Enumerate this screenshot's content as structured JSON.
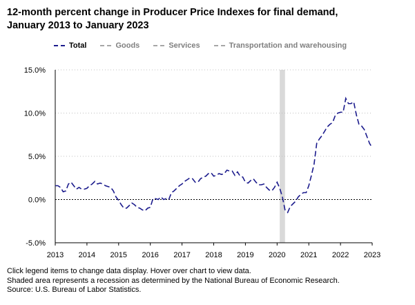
{
  "title_line1": "12-month percent change in Producer Price Indexes for final demand,",
  "title_line2": "January 2013 to January 2023",
  "legend": [
    {
      "label": "Total",
      "active": true
    },
    {
      "label": "Goods",
      "active": false
    },
    {
      "label": "Services",
      "active": false
    },
    {
      "label": "Transportation and warehousing",
      "active": false
    }
  ],
  "footer": {
    "line1": "Click legend items to change data display. Hover over chart to view data.",
    "line2": "Shaded area represents a recession as determined by the National Bureau of Economic Research.",
    "line3": "Source: U.S. Bureau of Labor Statistics."
  },
  "colors": {
    "total": "#1a1a8c",
    "inactive": "#a6a6a6",
    "recession": "#d9d9d9",
    "grid": "#bfbfbf"
  },
  "chart_data": {
    "type": "line",
    "title": "12-month percent change in Producer Price Indexes for final demand, January 2013 to January 2023",
    "xlabel": "",
    "ylabel": "",
    "ylim": [
      -5,
      15
    ],
    "yticks": [
      -5,
      0,
      5,
      10,
      15
    ],
    "ytick_labels": [
      "-5.0%",
      "0.0%",
      "5.0%",
      "10.0%",
      "15.0%"
    ],
    "xlim": [
      2013,
      2023
    ],
    "xticks": [
      2013,
      2014,
      2015,
      2016,
      2017,
      2018,
      2019,
      2020,
      2021,
      2022,
      2023
    ],
    "xtick_labels": [
      "2013",
      "2014",
      "2015",
      "2016",
      "2017",
      "2018",
      "2019",
      "2020",
      "2021",
      "2022",
      "2023"
    ],
    "recession": {
      "start": 2020.083,
      "end": 2020.25
    },
    "series": [
      {
        "name": "Total",
        "x_start": 2013.0,
        "x_step_months": 1,
        "values": [
          1.6,
          1.6,
          1.4,
          0.9,
          1.0,
          1.8,
          2.0,
          1.6,
          1.2,
          1.4,
          1.2,
          1.2,
          1.3,
          1.6,
          1.8,
          2.1,
          1.8,
          1.9,
          1.8,
          1.6,
          1.5,
          1.4,
          1.0,
          0.3,
          -0.1,
          -0.6,
          -1.0,
          -1.0,
          -0.7,
          -0.4,
          -0.6,
          -0.9,
          -1.0,
          -1.2,
          -1.3,
          -1.0,
          -0.9,
          0.1,
          0.1,
          0.0,
          0.3,
          0.0,
          0.1,
          0.0,
          0.8,
          1.0,
          1.3,
          1.6,
          1.8,
          2.1,
          2.3,
          2.5,
          2.4,
          2.0,
          2.0,
          2.4,
          2.6,
          2.7,
          3.0,
          3.1,
          2.7,
          2.8,
          3.0,
          2.9,
          3.0,
          3.4,
          3.3,
          3.3,
          2.8,
          3.2,
          2.7,
          2.6,
          2.0,
          1.9,
          2.2,
          2.4,
          2.0,
          1.7,
          1.7,
          1.8,
          1.4,
          1.1,
          1.0,
          1.4,
          2.0,
          1.3,
          0.3,
          -1.2,
          -1.5,
          -0.8,
          -0.5,
          -0.2,
          0.3,
          0.6,
          0.8,
          0.8,
          1.6,
          2.8,
          4.1,
          6.5,
          7.0,
          7.4,
          7.9,
          8.4,
          8.7,
          8.9,
          9.7,
          10.0,
          10.1,
          10.1,
          11.7,
          11.1,
          11.1,
          11.3,
          9.8,
          8.7,
          8.5,
          8.1,
          7.3,
          6.5,
          6.0
        ]
      },
      {
        "name": "Goods",
        "values": []
      },
      {
        "name": "Services",
        "values": []
      },
      {
        "name": "Transportation and warehousing",
        "values": []
      }
    ]
  }
}
